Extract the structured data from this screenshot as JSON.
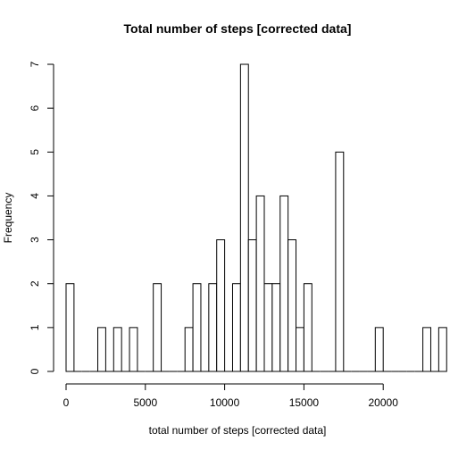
{
  "chart_data": {
    "type": "bar",
    "title": "Total number of steps [corrected data]",
    "xlabel": "total number of steps [corrected data]",
    "ylabel": "Frequency",
    "bin_width": 500,
    "x_start": 0,
    "counts": [
      2,
      0,
      0,
      0,
      1,
      0,
      1,
      0,
      1,
      0,
      0,
      2,
      0,
      0,
      0,
      1,
      2,
      0,
      2,
      3,
      0,
      2,
      7,
      3,
      4,
      2,
      2,
      4,
      3,
      1,
      2,
      0,
      0,
      0,
      5,
      0,
      0,
      0,
      0,
      1,
      0,
      0,
      0,
      0,
      0,
      1,
      0,
      1
    ],
    "xlim": [
      0,
      21500
    ],
    "ylim": [
      0,
      7
    ],
    "x_ticks": [
      0,
      5000,
      10000,
      15000,
      20000
    ],
    "y_ticks": [
      0,
      1,
      2,
      3,
      4,
      5,
      6,
      7
    ],
    "grid": false,
    "legend": false
  }
}
